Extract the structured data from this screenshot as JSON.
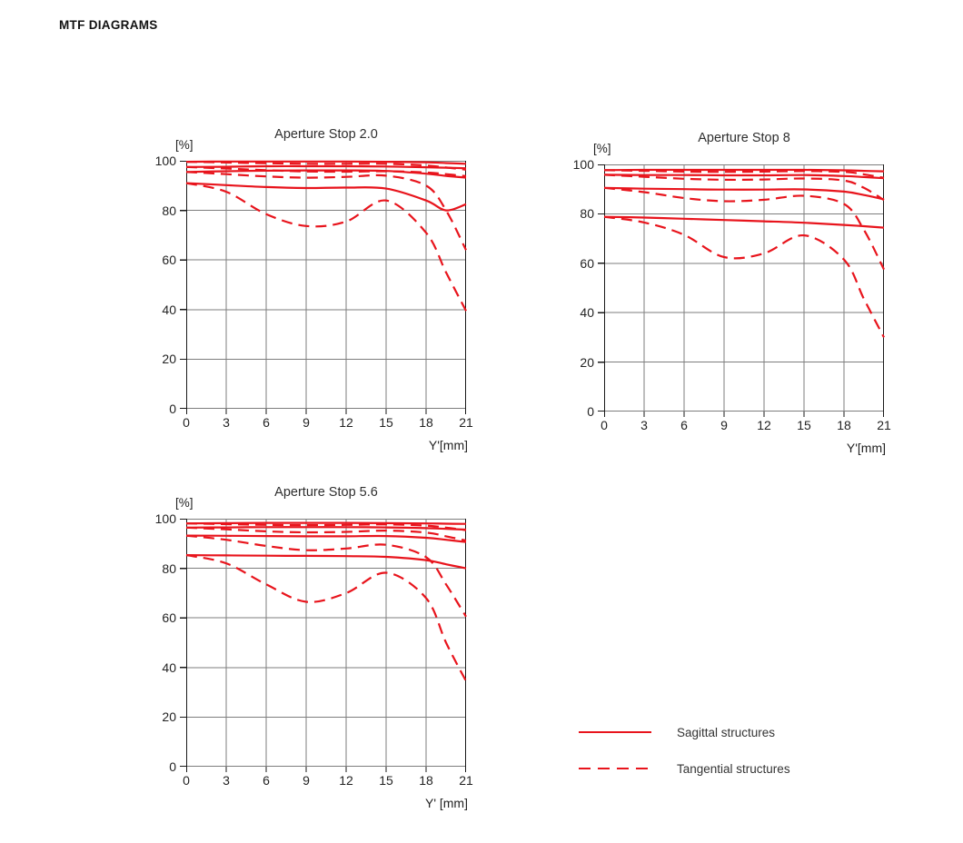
{
  "header": {
    "title": "MTF DIAGRAMS"
  },
  "colors": {
    "curve_red": "#E8141C",
    "grid_gray": "#7d7d7d",
    "axis_dark": "#1a1a1a",
    "text_dark": "#232323",
    "background": "#ffffff"
  },
  "legend": {
    "items": [
      {
        "label": "Sagittal structures",
        "style": "solid"
      },
      {
        "label": "Tangential structures",
        "style": "dashed"
      }
    ]
  },
  "chart_data": [
    {
      "type": "line",
      "title": "Aperture Stop 2.0",
      "ylabel": "[%]",
      "xlabel": "Y'[mm]",
      "xlim": [
        0,
        21
      ],
      "ylim": [
        0,
        100
      ],
      "xticks": [
        0,
        3,
        6,
        9,
        12,
        15,
        18,
        21
      ],
      "yticks": [
        0,
        20,
        40,
        60,
        80,
        100
      ],
      "grid": true,
      "x": [
        0,
        3,
        6,
        9,
        12,
        15,
        18,
        19.5,
        21
      ],
      "series": [
        {
          "name": "sagittal-1",
          "style": "solid",
          "values": [
            99.6,
            99.7,
            99.7,
            99.7,
            99.7,
            99.6,
            99.4,
            99.1,
            98.8
          ]
        },
        {
          "name": "sagittal-2",
          "style": "solid",
          "values": [
            97.5,
            97.6,
            97.8,
            97.8,
            97.8,
            97.7,
            97.4,
            97.2,
            97.0
          ]
        },
        {
          "name": "sagittal-3",
          "style": "solid",
          "values": [
            95.5,
            95.8,
            96.0,
            96.1,
            96.1,
            95.9,
            94.8,
            93.9,
            93.2
          ]
        },
        {
          "name": "sagittal-4",
          "style": "solid",
          "values": [
            91.0,
            90.2,
            89.4,
            89.0,
            89.2,
            88.8,
            84.0,
            80.0,
            82.5
          ]
        },
        {
          "name": "tangential-1",
          "style": "dashed",
          "values": [
            99.6,
            99.3,
            99.0,
            98.8,
            98.8,
            98.8,
            98.1,
            97.3,
            96.4
          ]
        },
        {
          "name": "tangential-2",
          "style": "dashed",
          "values": [
            97.5,
            96.9,
            96.2,
            95.7,
            95.6,
            95.8,
            95.3,
            94.6,
            93.8
          ]
        },
        {
          "name": "tangential-3",
          "style": "dashed",
          "values": [
            95.5,
            94.6,
            93.7,
            93.2,
            93.5,
            94.0,
            90.0,
            80.0,
            64.0
          ]
        },
        {
          "name": "tangential-4",
          "style": "dashed",
          "values": [
            91.0,
            87.5,
            78.5,
            73.7,
            75.5,
            84.0,
            71.0,
            55.0,
            39.5
          ]
        }
      ]
    },
    {
      "type": "line",
      "title": "Aperture Stop 8",
      "ylabel": "[%]",
      "xlabel": "Y'[mm]",
      "xlim": [
        0,
        21
      ],
      "ylim": [
        0,
        100
      ],
      "xticks": [
        0,
        3,
        6,
        9,
        12,
        15,
        18,
        21
      ],
      "yticks": [
        0,
        20,
        40,
        60,
        80,
        100
      ],
      "grid": true,
      "x": [
        0,
        3,
        6,
        9,
        12,
        15,
        18,
        19.5,
        21
      ],
      "series": [
        {
          "name": "sagittal-1",
          "style": "solid",
          "values": [
            97.7,
            97.8,
            97.8,
            97.8,
            97.8,
            97.8,
            97.6,
            97.4,
            97.2
          ]
        },
        {
          "name": "sagittal-2",
          "style": "solid",
          "values": [
            95.8,
            95.7,
            95.7,
            95.6,
            95.6,
            95.7,
            95.3,
            94.9,
            94.4
          ]
        },
        {
          "name": "sagittal-3",
          "style": "solid",
          "values": [
            90.5,
            90.2,
            90.0,
            89.8,
            89.8,
            89.9,
            89.0,
            87.6,
            85.9
          ]
        },
        {
          "name": "sagittal-4",
          "style": "solid",
          "values": [
            78.8,
            78.5,
            78.0,
            77.5,
            77.0,
            76.4,
            75.5,
            75.0,
            74.4
          ]
        },
        {
          "name": "tangential-1",
          "style": "dashed",
          "values": [
            97.7,
            97.4,
            97.1,
            97.0,
            97.1,
            97.3,
            97.0,
            96.0,
            94.6
          ]
        },
        {
          "name": "tangential-2",
          "style": "dashed",
          "values": [
            95.8,
            95.0,
            94.2,
            93.8,
            93.9,
            94.3,
            93.5,
            90.5,
            85.6
          ]
        },
        {
          "name": "tangential-3",
          "style": "dashed",
          "values": [
            90.5,
            88.8,
            86.4,
            85.1,
            85.7,
            87.3,
            84.0,
            73.5,
            57.5
          ]
        },
        {
          "name": "tangential-4",
          "style": "dashed",
          "values": [
            78.8,
            76.5,
            71.5,
            62.5,
            64.0,
            71.3,
            61.5,
            45.5,
            30.0
          ]
        }
      ]
    },
    {
      "type": "line",
      "title": "Aperture Stop 5.6",
      "ylabel": "[%]",
      "xlabel": "Y' [mm]",
      "xlim": [
        0,
        21
      ],
      "ylim": [
        0,
        100
      ],
      "xticks": [
        0,
        3,
        6,
        9,
        12,
        15,
        18,
        21
      ],
      "yticks": [
        0,
        20,
        40,
        60,
        80,
        100
      ],
      "grid": true,
      "x": [
        0,
        3,
        6,
        9,
        12,
        15,
        18,
        19.5,
        21
      ],
      "series": [
        {
          "name": "sagittal-1",
          "style": "solid",
          "values": [
            98.1,
            98.2,
            98.3,
            98.3,
            98.3,
            98.2,
            98.1,
            98.0,
            97.9
          ]
        },
        {
          "name": "sagittal-2",
          "style": "solid",
          "values": [
            96.4,
            96.5,
            96.6,
            96.6,
            96.6,
            96.5,
            96.2,
            95.9,
            95.6
          ]
        },
        {
          "name": "sagittal-3",
          "style": "solid",
          "values": [
            93.2,
            93.1,
            93.0,
            92.9,
            92.9,
            93.0,
            92.3,
            91.5,
            90.6
          ]
        },
        {
          "name": "sagittal-4",
          "style": "solid",
          "values": [
            85.3,
            85.2,
            85.1,
            85.0,
            84.9,
            84.6,
            83.3,
            81.6,
            80.0
          ]
        },
        {
          "name": "tangential-1",
          "style": "dashed",
          "values": [
            98.1,
            97.8,
            97.5,
            97.4,
            97.5,
            97.7,
            97.2,
            96.4,
            95.4
          ]
        },
        {
          "name": "tangential-2",
          "style": "dashed",
          "values": [
            96.4,
            95.7,
            94.9,
            94.5,
            94.7,
            95.2,
            94.4,
            92.9,
            91.2
          ]
        },
        {
          "name": "tangential-3",
          "style": "dashed",
          "values": [
            93.2,
            91.5,
            89.0,
            87.3,
            88.0,
            89.5,
            84.5,
            73.5,
            60.5
          ]
        },
        {
          "name": "tangential-4",
          "style": "dashed",
          "values": [
            85.3,
            82.0,
            73.5,
            66.5,
            70.0,
            78.2,
            68.0,
            50.0,
            34.5
          ]
        }
      ]
    }
  ]
}
